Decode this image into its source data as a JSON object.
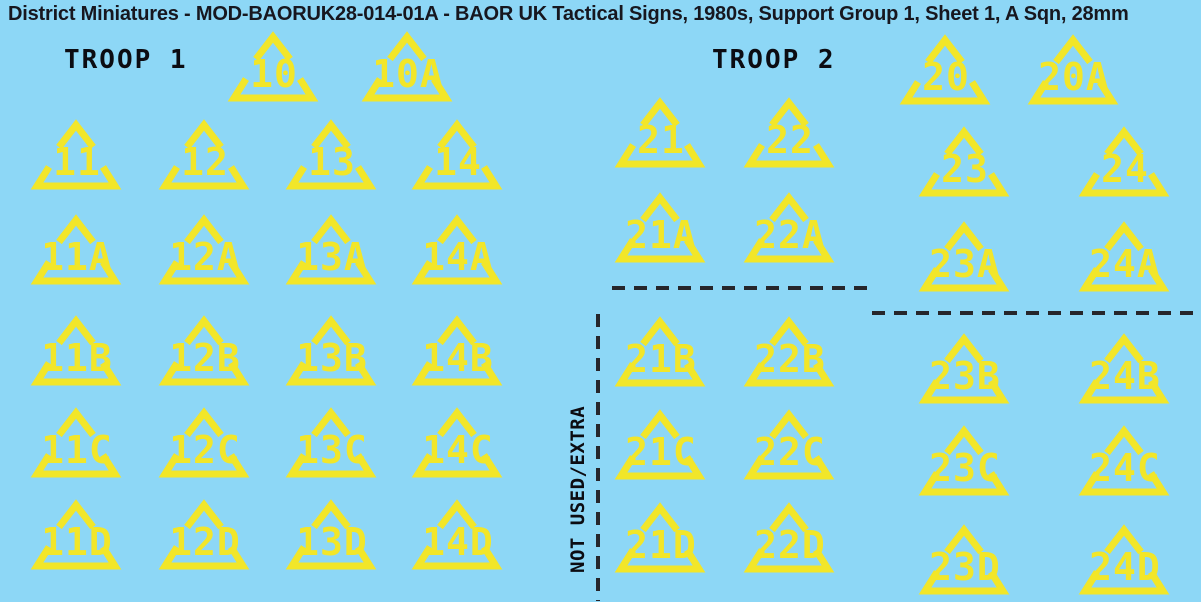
{
  "title": "District Miniatures - MOD-BAORUK28-014-01A - BAOR UK Tactical Signs, 1980s, Support Group 1, Sheet 1, A Sqn, 28mm",
  "colors": {
    "background": "#8DD7F6",
    "symbol_yellow": "#F2E629",
    "ink": "#17171F",
    "cut_line": "#26262B"
  },
  "troop1": {
    "label": "TROOP 1",
    "top_row": [
      "10",
      "10A"
    ],
    "grid": [
      [
        "11",
        "12",
        "13",
        "14"
      ],
      [
        "11A",
        "12A",
        "13A",
        "14A"
      ],
      [
        "11B",
        "12B",
        "13B",
        "14B"
      ],
      [
        "11C",
        "12C",
        "13C",
        "14C"
      ],
      [
        "11D",
        "12D",
        "13D",
        "14D"
      ]
    ]
  },
  "troop2": {
    "label": "TROOP 2",
    "top_row": [
      "20",
      "20A"
    ],
    "left_pairs": [
      [
        "21",
        "22"
      ],
      [
        "21A",
        "22A"
      ],
      [
        "21B",
        "22B"
      ],
      [
        "21C",
        "22C"
      ],
      [
        "21D",
        "22D"
      ]
    ],
    "right_pairs": [
      [
        "23",
        "24"
      ],
      [
        "23A",
        "24A"
      ],
      [
        "23B",
        "24B"
      ],
      [
        "23C",
        "24C"
      ],
      [
        "23D",
        "24D"
      ]
    ]
  },
  "not_used_label": "NOT USED/EXTRA"
}
